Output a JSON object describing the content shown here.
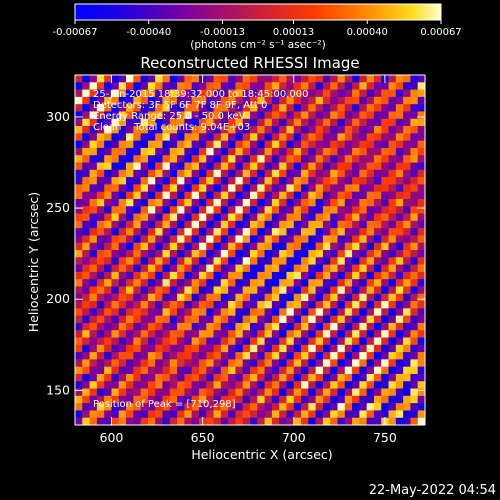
{
  "chart_data": {
    "type": "heatmap",
    "title": "Reconstructed RHESSI Image",
    "xlabel": "Heliocentric X (arcsec)",
    "ylabel": "Heliocentric Y (arcsec)",
    "xlim": [
      580,
      772
    ],
    "ylim": [
      131,
      323
    ],
    "x_ticks": [
      600,
      650,
      700,
      750
    ],
    "y_ticks": [
      150,
      200,
      250,
      300
    ],
    "colorbar": {
      "min": -0.00067,
      "max": 0.00067,
      "tick_values": [
        -0.00067,
        -0.0004,
        -0.00013,
        0.00013,
        0.0004,
        0.00067
      ],
      "tick_labels": [
        "-0.00067",
        "-0.00040",
        "-0.00013",
        "0.00013",
        "0.00040",
        "0.00067"
      ],
      "unit_label": "(photons cm⁻² s⁻¹ asec⁻²)"
    },
    "annotations": [
      "25-Jun-2015 18:39:32.000 to 18:45:00.000",
      "Detectors: 3F 5F 6F 7F 8F 9F, Att 0",
      "Energy Range: 25.0 - 50.0 keV",
      "Clean    Total counts: 9.04E+03"
    ],
    "peak_label": "Position of Peak = [710,298]",
    "pattern": {
      "description_free": true,
      "grid_cols": 48,
      "grid_rows": 48,
      "stripe_period_px": 30,
      "stripe_direction": [
        1,
        1
      ]
    }
  },
  "footer": {
    "timestamp": "22-May-2022 04:54"
  }
}
